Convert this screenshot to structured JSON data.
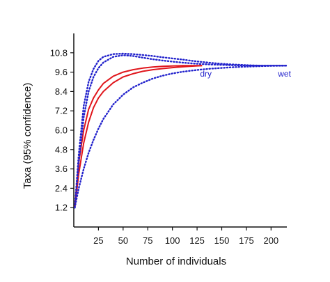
{
  "chart_data": {
    "type": "line",
    "title": "",
    "xlabel": "Number of individuals",
    "ylabel": "Taxa (95% confidence)",
    "xlim": [
      0,
      216
    ],
    "ylim": [
      0,
      12
    ],
    "x_ticks": [
      25,
      50,
      75,
      100,
      125,
      150,
      175,
      200
    ],
    "y_ticks": [
      1.2,
      2.4,
      3.6,
      4.8,
      6.0,
      7.2,
      8.4,
      9.6,
      10.8
    ],
    "y_tick_labels": [
      "1.2",
      "2.4",
      "3.6",
      "4.8",
      "6.0",
      "7.2",
      "8.4",
      "9.6",
      "10.8"
    ],
    "grid": false,
    "series": [
      {
        "group": "dry",
        "role": "mean",
        "color": "#e0161c",
        "style": "solid",
        "x": [
          1,
          5,
          10,
          15,
          20,
          25,
          30,
          40,
          50,
          60,
          70,
          80,
          90,
          100,
          110,
          120,
          130
        ],
        "y": [
          1.2,
          3.3,
          5.2,
          6.5,
          7.4,
          8.0,
          8.4,
          8.95,
          9.3,
          9.5,
          9.65,
          9.75,
          9.82,
          9.88,
          9.93,
          9.97,
          10.0
        ]
      },
      {
        "group": "dry",
        "role": "upper 95% CI",
        "color": "#e0161c",
        "style": "solid",
        "x": [
          1,
          5,
          10,
          15,
          20,
          25,
          30,
          40,
          50,
          60,
          70,
          80,
          90,
          100,
          110,
          120,
          130
        ],
        "y": [
          1.2,
          4.0,
          6.0,
          7.3,
          8.0,
          8.5,
          8.9,
          9.35,
          9.6,
          9.75,
          9.85,
          9.92,
          9.96,
          9.98,
          10.0,
          10.0,
          10.0
        ]
      },
      {
        "group": "wet",
        "role": "upper 95% CI",
        "color": "#2222cc",
        "style": "dotted",
        "x": [
          1,
          5,
          10,
          15,
          20,
          25,
          30,
          40,
          50,
          60,
          70,
          80,
          90,
          100,
          110,
          120,
          130,
          140,
          150,
          160,
          170,
          180,
          190,
          200,
          216
        ],
        "y": [
          1.2,
          4.5,
          7.5,
          9.0,
          9.8,
          10.3,
          10.55,
          10.72,
          10.75,
          10.72,
          10.66,
          10.6,
          10.52,
          10.45,
          10.38,
          10.3,
          10.23,
          10.17,
          10.12,
          10.08,
          10.05,
          10.02,
          10.0,
          10.0,
          10.0
        ]
      },
      {
        "group": "wet",
        "role": "mean",
        "color": "#2222cc",
        "style": "dotted",
        "x": [
          1,
          5,
          10,
          15,
          20,
          25,
          30,
          40,
          50,
          60,
          70,
          80,
          90,
          100,
          110,
          120,
          130,
          140,
          150,
          160,
          170,
          180,
          190,
          200,
          216
        ],
        "y": [
          1.2,
          4.0,
          6.8,
          8.4,
          9.3,
          9.85,
          10.2,
          10.55,
          10.65,
          10.6,
          10.5,
          10.4,
          10.32,
          10.25,
          10.19,
          10.14,
          10.1,
          10.07,
          10.05,
          10.03,
          10.02,
          10.01,
          10.0,
          10.0,
          10.0
        ]
      },
      {
        "group": "wet",
        "role": "lower 95% CI",
        "color": "#2222cc",
        "style": "dotted",
        "x": [
          1,
          5,
          10,
          15,
          20,
          25,
          30,
          40,
          50,
          60,
          70,
          80,
          90,
          100,
          110,
          120,
          130,
          140,
          150,
          160,
          170,
          180,
          190,
          200,
          216
        ],
        "y": [
          1.2,
          2.4,
          3.6,
          4.6,
          5.4,
          6.1,
          6.7,
          7.6,
          8.2,
          8.65,
          8.95,
          9.2,
          9.38,
          9.52,
          9.62,
          9.7,
          9.77,
          9.82,
          9.86,
          9.9,
          9.93,
          9.95,
          9.97,
          9.99,
          10.0
        ]
      }
    ],
    "annotations": [
      {
        "text": "dry",
        "x": 128,
        "y": 9.5,
        "color": "#2222cc"
      },
      {
        "text": "wet",
        "x": 207,
        "y": 9.5,
        "color": "#2222cc"
      }
    ]
  }
}
